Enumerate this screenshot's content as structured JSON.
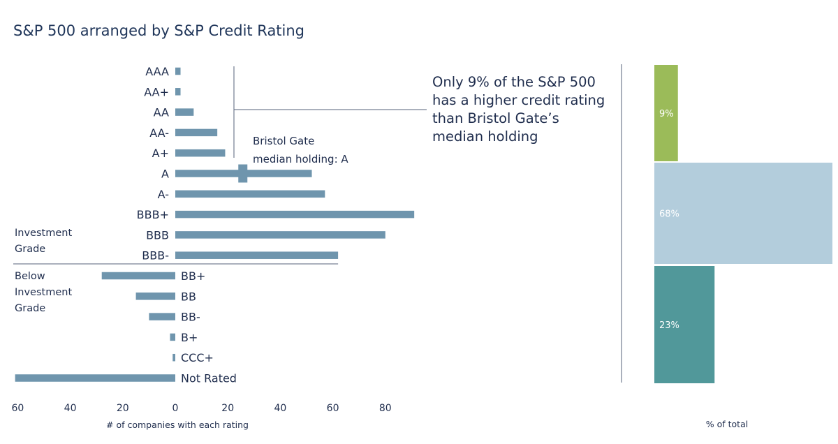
{
  "title": "S&P 500 arranged by S&P Credit Rating",
  "chart_data": [
    {
      "type": "bar",
      "orientation": "horizontal",
      "categories": [
        "AAA",
        "AA+",
        "AA",
        "AA-",
        "A+",
        "A",
        "A-",
        "BBB+",
        "BBB",
        "BBB-",
        "BB+",
        "BB",
        "BB-",
        "B+",
        "CCC+",
        "Not Rated"
      ],
      "investment_grade_values": [
        2,
        2,
        7,
        16,
        19,
        52,
        57,
        91,
        80,
        62,
        null,
        null,
        null,
        null,
        null,
        null
      ],
      "below_investment_grade_values": [
        null,
        null,
        null,
        null,
        null,
        null,
        null,
        null,
        null,
        null,
        28,
        15,
        10,
        2,
        1,
        61
      ],
      "xlabel": "# of companies with each rating",
      "xticks": [
        "60",
        "40",
        "20",
        "0",
        "20",
        "40",
        "60",
        "80"
      ],
      "xlim_left": 60,
      "xlim_right": 91,
      "bar_color": "#6f95ad",
      "group_labels": {
        "investment": [
          "Investment",
          "Grade"
        ],
        "below": [
          "Below",
          "Investment",
          "Grade"
        ]
      },
      "marker": {
        "category": "A",
        "value": 26,
        "label_line1": "Bristol Gate",
        "label_line2": "median holding: A"
      },
      "callout": [
        "Only 9% of the S&P 500",
        "has a higher credit rating",
        "than Bristol Gate’s",
        "median holding"
      ]
    },
    {
      "type": "bar",
      "xlabel": "% of total",
      "segments": [
        {
          "label": "9%",
          "value": 9,
          "color": "#9bbb59"
        },
        {
          "label": "68%",
          "value": 68,
          "color": "#b3cddc"
        },
        {
          "label": "23%",
          "value": 23,
          "color": "#51989a"
        }
      ]
    }
  ]
}
